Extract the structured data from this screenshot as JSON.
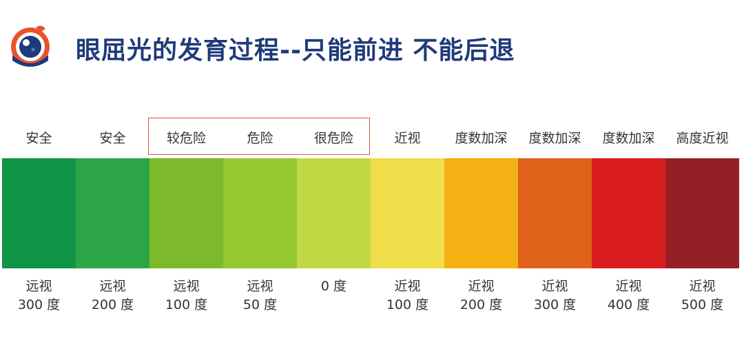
{
  "title": "眼屈光的发育过程--只能前进 不能后退",
  "stages": [
    {
      "top": "安全",
      "bottom1": "远视",
      "bottom2": "300 度",
      "color": "#0e9444"
    },
    {
      "top": "安全",
      "bottom1": "远视",
      "bottom2": "200 度",
      "color": "#2ca548"
    },
    {
      "top": "较危险",
      "bottom1": "远视",
      "bottom2": "100 度",
      "color": "#7cba2b"
    },
    {
      "top": "危险",
      "bottom1": "远视",
      "bottom2": "50 度",
      "color": "#96c831"
    },
    {
      "top": "很危险",
      "bottom1": "0 度",
      "bottom2": "",
      "color": "#c0d944"
    },
    {
      "top": "近视",
      "bottom1": "近视",
      "bottom2": "100 度",
      "color": "#f1de4b"
    },
    {
      "top": "度数加深",
      "bottom1": "近视",
      "bottom2": "200 度",
      "color": "#f4b114"
    },
    {
      "top": "度数加深",
      "bottom1": "近视",
      "bottom2": "300 度",
      "color": "#e0621a"
    },
    {
      "top": "度数加深",
      "bottom1": "近视",
      "bottom2": "400 度",
      "color": "#d91c1e"
    },
    {
      "top": "高度近视",
      "bottom1": "近视",
      "bottom2": "500 度",
      "color": "#961f26"
    }
  ]
}
